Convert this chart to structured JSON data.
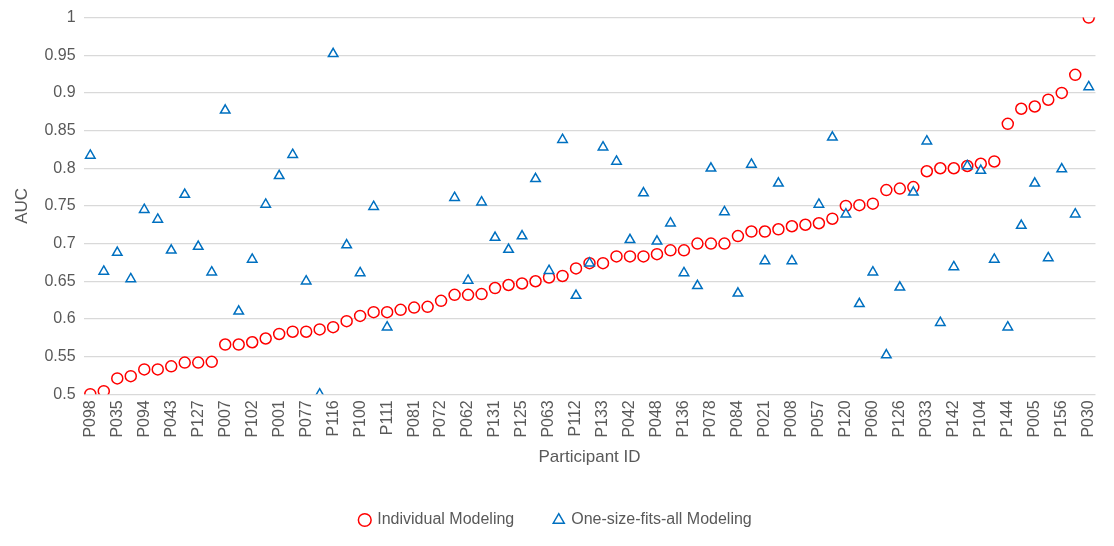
{
  "chart_data": {
    "type": "scatter",
    "xlabel": "Participant ID",
    "ylabel": "AUC",
    "categories": [
      "P098",
      null,
      "P035",
      null,
      "P094",
      null,
      "P043",
      null,
      "P127",
      null,
      "P007",
      null,
      "P102",
      null,
      "P001",
      null,
      "P077",
      null,
      "P116",
      null,
      "P100",
      null,
      "P111",
      null,
      "P081",
      null,
      "P072",
      null,
      "P062",
      null,
      "P131",
      null,
      "P125",
      null,
      "P063",
      null,
      "P112",
      null,
      "P133",
      null,
      "P042",
      null,
      "P048",
      null,
      "P136",
      null,
      "P078",
      null,
      "P084",
      null,
      "P021",
      null,
      "P008",
      null,
      "P057",
      null,
      "P120",
      null,
      "P060",
      null,
      "P126",
      null,
      "P033",
      null,
      "P142",
      null,
      "P104",
      null,
      "P144",
      null,
      "P005",
      null,
      "P156",
      null,
      "P030"
    ],
    "series": [
      {
        "name": "Individual Modeling",
        "color": "#ff0000",
        "marker": "circle",
        "values": [
          0.5,
          0.504,
          0.521,
          0.524,
          0.533,
          0.533,
          0.537,
          0.542,
          0.542,
          0.543,
          0.566,
          0.566,
          0.569,
          0.574,
          0.58,
          0.583,
          0.583,
          0.586,
          0.589,
          0.597,
          0.604,
          0.609,
          0.609,
          0.612,
          0.615,
          0.616,
          0.624,
          0.632,
          0.632,
          0.633,
          0.641,
          0.645,
          0.647,
          0.65,
          0.655,
          0.657,
          0.667,
          0.674,
          0.674,
          0.683,
          0.683,
          0.683,
          0.686,
          0.691,
          0.691,
          0.7,
          0.7,
          0.7,
          0.71,
          0.716,
          0.716,
          0.719,
          0.723,
          0.725,
          0.727,
          0.733,
          0.75,
          0.751,
          0.753,
          0.771,
          0.773,
          0.775,
          0.796,
          0.8,
          0.8,
          0.803,
          0.806,
          0.809,
          0.859,
          0.879,
          0.882,
          0.891,
          0.9,
          0.924,
          1.0
        ]
      },
      {
        "name": "One-size-fits-all Modeling",
        "color": "#0070c0",
        "marker": "triangle",
        "values": [
          0.817,
          0.663,
          0.688,
          0.653,
          0.745,
          0.732,
          0.691,
          0.765,
          0.696,
          0.662,
          0.877,
          0.61,
          0.679,
          0.752,
          0.79,
          0.818,
          0.65,
          0.5,
          0.952,
          0.698,
          0.661,
          0.749,
          0.589,
          null,
          null,
          null,
          null,
          0.761,
          0.651,
          0.755,
          0.708,
          0.692,
          0.71,
          0.786,
          0.664,
          0.838,
          0.631,
          0.674,
          0.828,
          0.809,
          0.705,
          0.767,
          0.703,
          0.727,
          0.661,
          0.644,
          0.8,
          0.742,
          0.634,
          0.805,
          0.677,
          0.78,
          0.677,
          null,
          0.752,
          0.841,
          0.739,
          0.62,
          0.662,
          0.552,
          0.642,
          0.768,
          0.836,
          0.595,
          0.669,
          0.803,
          0.797,
          0.679,
          0.589,
          0.724,
          0.78,
          0.681,
          0.799,
          0.739,
          0.908
        ]
      }
    ],
    "ylim": [
      0.5,
      1
    ],
    "yticks": [
      0.5,
      0.55,
      0.6,
      0.65,
      0.7,
      0.75,
      0.8,
      0.85,
      0.9,
      0.95,
      1
    ],
    "grid": "y",
    "legend": "bottom"
  }
}
